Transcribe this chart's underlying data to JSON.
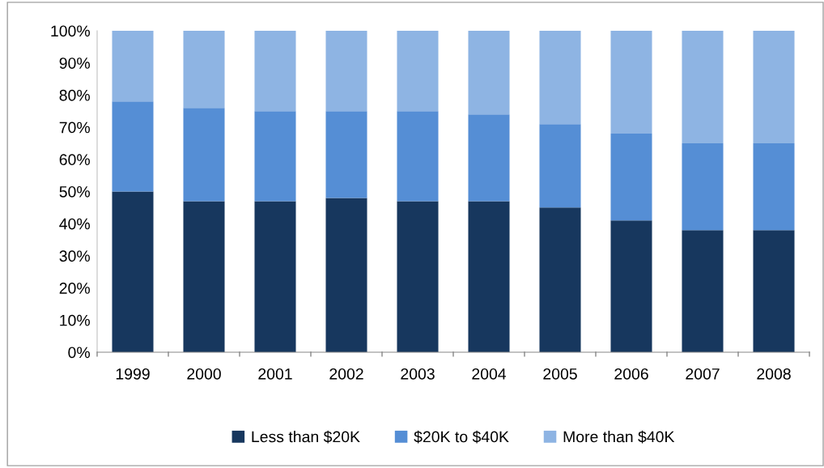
{
  "chart_data": {
    "type": "bar",
    "stacked": true,
    "categories": [
      "1999",
      "2000",
      "2001",
      "2002",
      "2003",
      "2004",
      "2005",
      "2006",
      "2007",
      "2008"
    ],
    "series": [
      {
        "name": "Less than $20K",
        "color": "#17375e",
        "values": [
          50,
          47,
          47,
          48,
          47,
          47,
          45,
          41,
          38,
          38
        ]
      },
      {
        "name": "$20K to $40K",
        "color": "#558ed5",
        "values": [
          28,
          29,
          28,
          27,
          28,
          27,
          26,
          27,
          27,
          27
        ]
      },
      {
        "name": "More than $40K",
        "color": "#8eb4e3",
        "values": [
          22,
          24,
          25,
          25,
          25,
          26,
          29,
          32,
          35,
          35
        ]
      }
    ],
    "ylim": [
      0,
      100
    ],
    "yticks": [
      {
        "value": 0,
        "label": "0%"
      },
      {
        "value": 10,
        "label": "10%"
      },
      {
        "value": 20,
        "label": "20%"
      },
      {
        "value": 30,
        "label": "30%"
      },
      {
        "value": 40,
        "label": "40%"
      },
      {
        "value": 50,
        "label": "50%"
      },
      {
        "value": 60,
        "label": "60%"
      },
      {
        "value": 70,
        "label": "70%"
      },
      {
        "value": 80,
        "label": "80%"
      },
      {
        "value": 90,
        "label": "90%"
      },
      {
        "value": 100,
        "label": "100%"
      }
    ],
    "grid": false,
    "legend": "bottom"
  }
}
